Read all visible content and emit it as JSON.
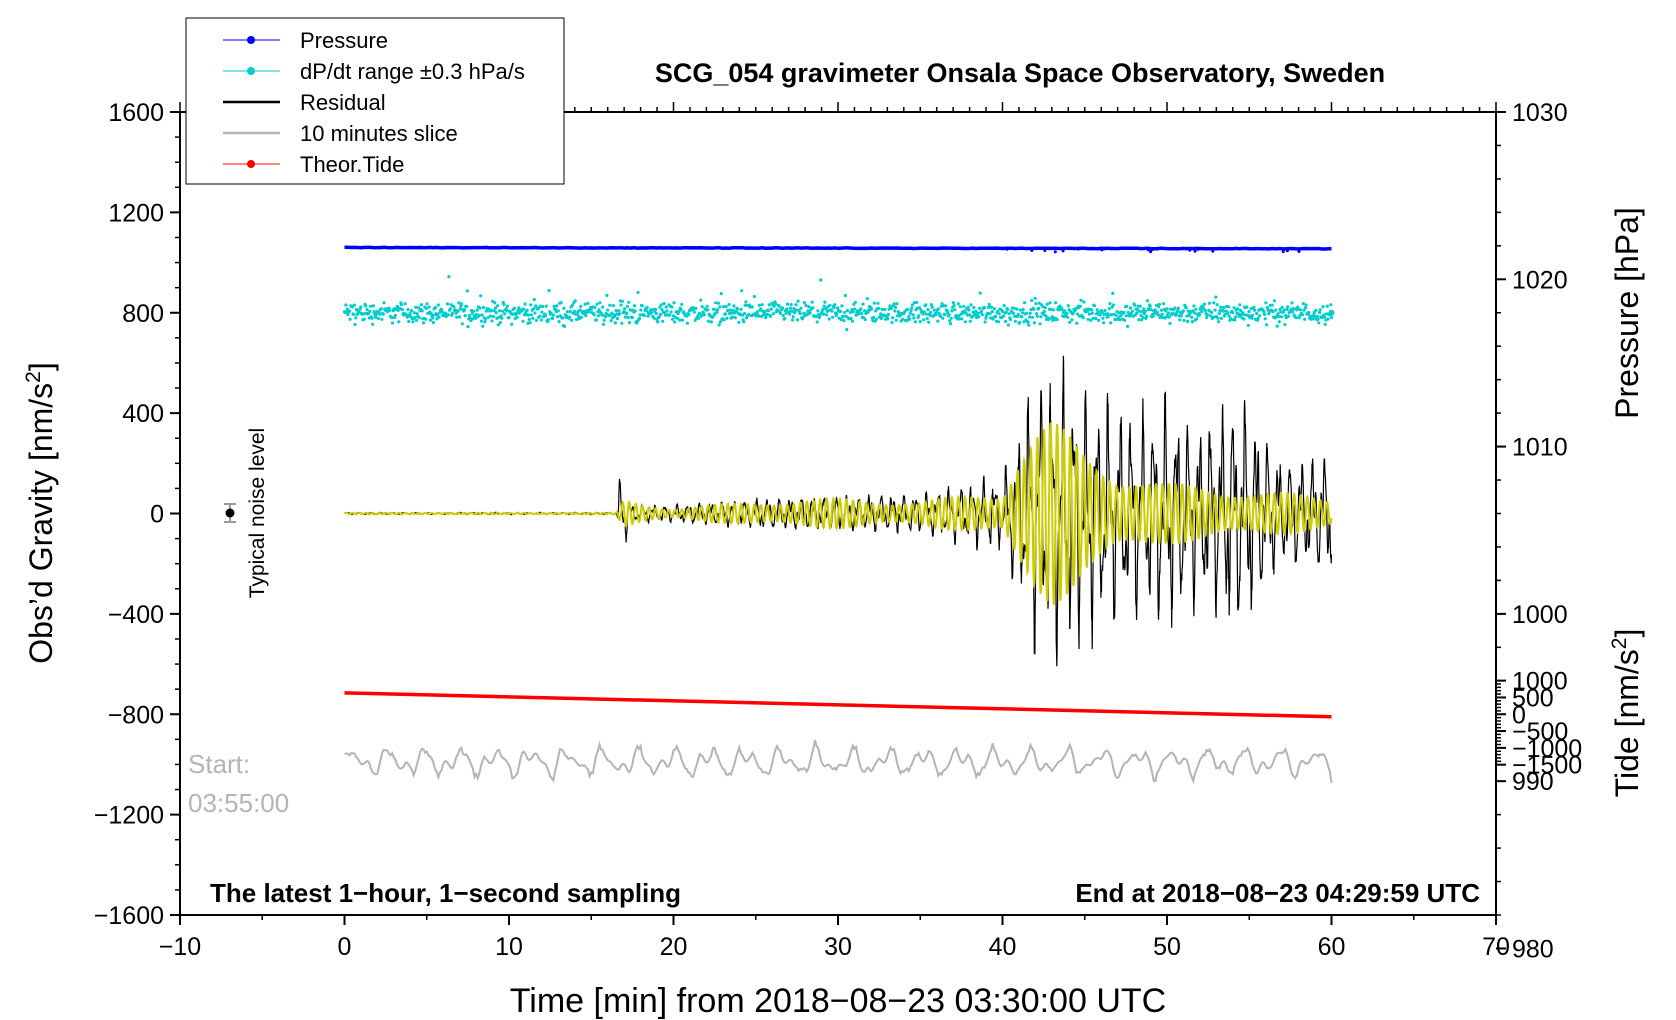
{
  "chart_data": {
    "type": "line",
    "title": "SCG_054 gravimeter Onsala Space Observatory, Sweden",
    "xlabel": "Time [min] from 2018−08−23 03:30:00 UTC",
    "ylabel_prefix": "Obs’d Gravity [nm/s",
    "ylabel_sup": "2",
    "ylabel_suffix": "]",
    "y2_pressure_label": "Pressure [hPa]",
    "y2_tide_prefix": "Tide [nm/s",
    "y2_tide_sup": "2",
    "y2_tide_suffix": "]",
    "xlim": [
      -10,
      70
    ],
    "ylim": [
      -1600,
      1600
    ],
    "xticks": [
      -10,
      0,
      10,
      20,
      30,
      40,
      50,
      60,
      70
    ],
    "xtick_labels": [
      "−10",
      "0",
      "10",
      "20",
      "30",
      "40",
      "50",
      "60",
      "70"
    ],
    "yticks": [
      1600,
      1200,
      800,
      400,
      0,
      -400,
      -800,
      -1200,
      -1600
    ],
    "ytick_labels": [
      "1600",
      "1200",
      "800",
      "400",
      "0",
      "−400",
      "−800",
      "−1200",
      "−1600"
    ],
    "pressure_axis": {
      "ticks": [
        1030,
        1020,
        1010,
        1000,
        990,
        980
      ],
      "tick_labels": [
        "1030",
        "1020",
        "1010",
        "1000",
        "990",
        "980"
      ]
    },
    "tide_axis": {
      "ticks": [
        1000,
        500,
        0,
        -500,
        -1000,
        -1500
      ],
      "tick_labels": [
        "1000",
        "500",
        "0",
        "−500",
        "−1000",
        "−1500"
      ]
    },
    "legend": {
      "position": "top-left",
      "entries": [
        {
          "label": "Pressure",
          "color": "#0000ff",
          "style": "line-dot"
        },
        {
          "label": "dP/dt range ±0.3 hPa/s",
          "color": "#00cccc",
          "style": "line-dot"
        },
        {
          "label": "Residual",
          "color": "#000000",
          "style": "line"
        },
        {
          "label": "10 minutes slice",
          "color": "#b4b4b4",
          "style": "line"
        },
        {
          "label": "Theor.Tide",
          "color": "#ff0000",
          "style": "line-dot"
        }
      ]
    },
    "series": [
      {
        "name": "Pressure",
        "axis": "gravity",
        "x_range": [
          0,
          60
        ],
        "y_start": 1060,
        "y_end": 1055
      },
      {
        "name": "dP/dt",
        "axis": "gravity",
        "x_range": [
          0,
          60
        ],
        "y_center": 800,
        "spread": 40
      },
      {
        "name": "Theor.Tide",
        "axis": "gravity",
        "x_range": [
          0,
          60
        ],
        "y_start": -715,
        "y_end": -810
      },
      {
        "name": "Residual",
        "axis": "gravity",
        "x_range": [
          0,
          60
        ],
        "envelope_x": [
          0,
          16.5,
          16.8,
          17.5,
          20,
          25,
          30,
          35,
          40,
          41,
          42,
          43,
          44,
          45,
          47,
          49,
          50,
          52,
          54,
          55,
          57,
          60
        ],
        "envelope_amp": [
          5,
          5,
          200,
          40,
          45,
          75,
          90,
          100,
          180,
          420,
          640,
          700,
          650,
          620,
          520,
          500,
          560,
          420,
          600,
          520,
          260,
          300
        ]
      },
      {
        "name": "Filtered",
        "axis": "gravity",
        "x_range": [
          0,
          60
        ],
        "envelope_x": [
          0,
          16.5,
          17,
          20,
          25,
          30,
          35,
          40,
          41,
          42,
          43,
          45,
          47,
          50,
          55,
          60
        ],
        "envelope_amp": [
          3,
          3,
          60,
          20,
          50,
          60,
          50,
          90,
          280,
          360,
          380,
          260,
          180,
          120,
          100,
          60
        ]
      },
      {
        "name": "10 minutes slice",
        "axis": "gravity",
        "x_range": [
          0,
          60
        ],
        "y_center": -990,
        "amplitude": 90
      }
    ],
    "noise_bar": {
      "x": -7,
      "y": 0,
      "label": "Typical noise level"
    },
    "annotations": {
      "slice_start_label": "Start:",
      "slice_start_time": "03:55:00",
      "bottom_left": "The latest 1−hour, 1−second sampling",
      "bottom_right": "End at 2018−08−23 04:29:59 UTC"
    },
    "colors": {
      "pressure": "#0000ff",
      "dpdt": "#00cccc",
      "residual": "#000000",
      "filtered": "#cccc00",
      "slice": "#b4b4b4",
      "tide": "#ff0000"
    }
  }
}
